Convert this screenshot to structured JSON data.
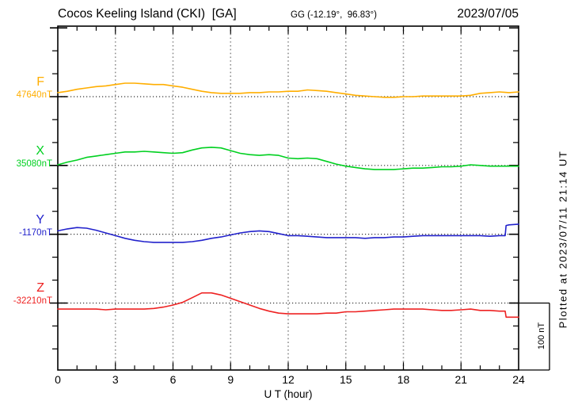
{
  "header": {
    "station_title": "Cocos Keeling Island (CKI)  [GA]",
    "coords": "GG (-12.19°,  96.83°)",
    "date": "2023/07/05"
  },
  "axes": {
    "xlabel": "U T (hour)",
    "x_ticks": [
      "0",
      "3",
      "6",
      "9",
      "12",
      "15",
      "18",
      "21",
      "24"
    ]
  },
  "scale_bar": {
    "label": "100 nT",
    "nT": 100
  },
  "footer_note": "Plotted at 2023/07/11 21:14 UT",
  "chart_data": {
    "type": "line",
    "title": "Cocos Keeling Island (CKI) [GA] magnetogram 2023/07/05",
    "xlabel": "U T (hour)",
    "x_range": [
      0,
      24
    ],
    "x_ticks_major": [
      0,
      3,
      6,
      9,
      12,
      15,
      18,
      21,
      24
    ],
    "x_step_hours": 0.5,
    "grid": "dotted vertical every 3 h, dotted horizontal baseline per component",
    "legend_position": "left margin component labels",
    "scale_bar_nT": 100,
    "series": [
      {
        "name": "F",
        "value_label": "47640nT",
        "baseline_nT": 47640,
        "color": "#ffae00",
        "offsets_nT": [
          6,
          8,
          11,
          13,
          15,
          16,
          18,
          20,
          20,
          19,
          18,
          18,
          16,
          14,
          11,
          8,
          6,
          5,
          5,
          5,
          6,
          6,
          7,
          7,
          8,
          8,
          10,
          9,
          8,
          6,
          4,
          2,
          1,
          0,
          -1,
          -1,
          0,
          0,
          1,
          1,
          1,
          1,
          1,
          2,
          5,
          6,
          7,
          6,
          7
        ]
      },
      {
        "name": "X",
        "value_label": "35080nT",
        "baseline_nT": 35080,
        "color": "#00d020",
        "offsets_nT": [
          1,
          5,
          8,
          12,
          14,
          16,
          18,
          20,
          20,
          21,
          20,
          19,
          18,
          19,
          23,
          26,
          27,
          26,
          22,
          18,
          16,
          15,
          16,
          15,
          11,
          10,
          11,
          10,
          6,
          2,
          -1,
          -3,
          -5,
          -6,
          -6,
          -6,
          -5,
          -4,
          -4,
          -3,
          -2,
          -2,
          -1,
          1,
          0,
          -1,
          -1,
          -1,
          -1
        ]
      },
      {
        "name": "Y",
        "value_label": "-1170nT",
        "baseline_nT": -1170,
        "color": "#2222cc",
        "x": [
          0,
          0.5,
          1,
          1.5,
          2,
          2.5,
          3,
          3.5,
          4,
          4.5,
          5,
          5.5,
          6,
          6.5,
          7,
          7.5,
          8,
          8.5,
          9,
          9.5,
          10,
          10.5,
          11,
          11.5,
          12,
          12.5,
          13,
          13.5,
          14,
          14.5,
          15,
          15.5,
          16,
          16.5,
          17,
          17.5,
          18,
          18.5,
          19,
          19.5,
          20,
          20.5,
          21,
          21.5,
          22,
          22.5,
          23,
          23.3,
          23.35,
          23.5,
          24
        ],
        "offsets_nT": [
          5,
          8,
          10,
          9,
          6,
          2,
          -2,
          -6,
          -9,
          -11,
          -12,
          -12,
          -12,
          -12,
          -11,
          -9,
          -6,
          -4,
          -1,
          2,
          4,
          5,
          4,
          1,
          -2,
          -2,
          -3,
          -4,
          -5,
          -5,
          -5,
          -5,
          -6,
          -5,
          -5,
          -4,
          -4,
          -3,
          -2,
          -2,
          -2,
          -2,
          -2,
          -2,
          -2,
          -3,
          -2,
          -2,
          13,
          14,
          15
        ]
      },
      {
        "name": "Z",
        "value_label": "-32210nT",
        "baseline_nT": -32210,
        "color": "#ee2222",
        "x": [
          0,
          0.5,
          1,
          1.5,
          2,
          2.5,
          3,
          3.5,
          4,
          4.5,
          5,
          5.5,
          6,
          6.5,
          7,
          7.5,
          8,
          8.5,
          9,
          9.5,
          10,
          10.5,
          11,
          11.5,
          12,
          12.5,
          13,
          13.5,
          14,
          14.5,
          15,
          15.5,
          16,
          16.5,
          17,
          17.5,
          18,
          18.5,
          19,
          19.5,
          20,
          20.5,
          21,
          21.5,
          22,
          22.5,
          23,
          23.3,
          23.35,
          23.5,
          24
        ],
        "offsets_nT": [
          -9,
          -9,
          -9,
          -9,
          -9,
          -10,
          -9,
          -9,
          -9,
          -9,
          -8,
          -6,
          -3,
          1,
          8,
          15,
          15,
          12,
          7,
          2,
          -3,
          -8,
          -12,
          -15,
          -16,
          -16,
          -16,
          -16,
          -15,
          -15,
          -13,
          -13,
          -12,
          -11,
          -10,
          -9,
          -9,
          -9,
          -9,
          -10,
          -11,
          -11,
          -10,
          -9,
          -11,
          -11,
          -12,
          -12,
          -21,
          -21,
          -21
        ]
      }
    ]
  }
}
